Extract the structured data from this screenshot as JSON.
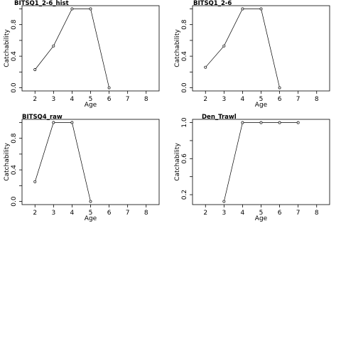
{
  "chart_data": [
    {
      "type": "line",
      "title": "BITSQ1_2-6_hist",
      "xlabel": "Age",
      "ylabel": "Catchability",
      "xlim": [
        1.3,
        8.7
      ],
      "ylim": [
        -0.04,
        1.04
      ],
      "x_ticks": [
        2,
        3,
        4,
        5,
        6,
        7,
        8
      ],
      "y_ticks": [
        0.0,
        0.2,
        0.4,
        0.6,
        0.8,
        1.0
      ],
      "y_tick_labels": [
        "0.0",
        "",
        "0.4",
        "",
        "0.8",
        ""
      ],
      "grid": false,
      "x": [
        2,
        3,
        4,
        5,
        6
      ],
      "y": [
        0.23,
        0.53,
        1.0,
        1.0,
        0.0
      ]
    },
    {
      "type": "line",
      "title": "BITSQ1_2-6",
      "xlabel": "Age",
      "ylabel": "Catchability",
      "xlim": [
        1.3,
        8.7
      ],
      "ylim": [
        -0.04,
        1.04
      ],
      "x_ticks": [
        2,
        3,
        4,
        5,
        6,
        7,
        8
      ],
      "y_ticks": [
        0.0,
        0.2,
        0.4,
        0.6,
        0.8,
        1.0
      ],
      "y_tick_labels": [
        "0.0",
        "",
        "0.4",
        "",
        "0.8",
        ""
      ],
      "grid": false,
      "x": [
        2,
        3,
        4,
        5,
        6
      ],
      "y": [
        0.26,
        0.53,
        1.0,
        1.0,
        0.0
      ]
    },
    {
      "type": "line",
      "title": "BITSQ4_raw",
      "xlabel": "Age",
      "ylabel": "Catchability",
      "xlim": [
        1.3,
        8.7
      ],
      "ylim": [
        -0.04,
        1.04
      ],
      "x_ticks": [
        2,
        3,
        4,
        5,
        6,
        7,
        8
      ],
      "y_ticks": [
        0.0,
        0.2,
        0.4,
        0.6,
        0.8,
        1.0
      ],
      "y_tick_labels": [
        "0.0",
        "",
        "0.4",
        "",
        "0.8",
        ""
      ],
      "grid": false,
      "x": [
        2,
        3,
        4,
        5
      ],
      "y": [
        0.25,
        1.0,
        1.0,
        0.0
      ]
    },
    {
      "type": "line",
      "title": "Den_Trawl",
      "xlabel": "Age",
      "ylabel": "Catchability",
      "xlim": [
        1.3,
        8.7
      ],
      "ylim": [
        0.09,
        1.036
      ],
      "x_ticks": [
        2,
        3,
        4,
        5,
        6,
        7,
        8
      ],
      "y_ticks": [
        0.2,
        0.4,
        0.6,
        0.8,
        1.0
      ],
      "y_tick_labels": [
        "0.2",
        "",
        "0.6",
        "",
        "1.0"
      ],
      "grid": false,
      "x": [
        3,
        4,
        5,
        6,
        7
      ],
      "y": [
        0.125,
        1.0,
        1.0,
        1.0,
        1.0
      ]
    }
  ]
}
